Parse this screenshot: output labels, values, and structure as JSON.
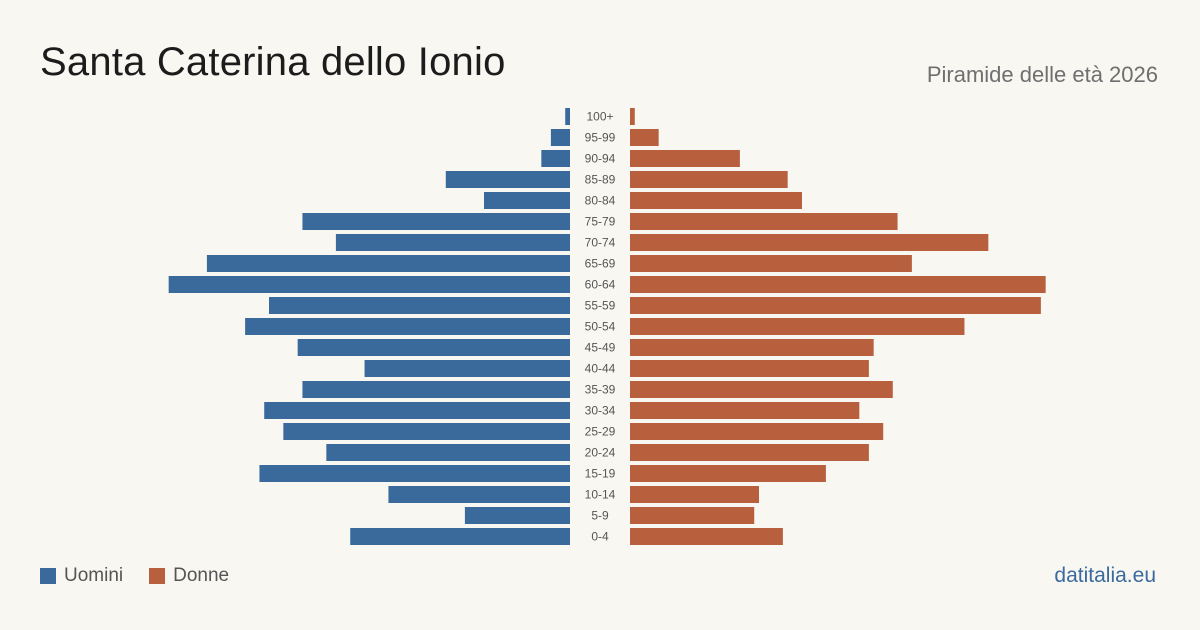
{
  "header": {
    "title": "Santa Caterina dello Ionio",
    "subtitle": "Piramide delle età 2026"
  },
  "legend": {
    "men_label": "Uomini",
    "women_label": "Donne"
  },
  "footer": {
    "site": "datitalia.eu"
  },
  "colors": {
    "men": "#3a6a9b",
    "women": "#b85f3e",
    "background": "#f9f7f2"
  },
  "chart_data": {
    "type": "bar",
    "orientation": "horizontal-pyramid",
    "title": "Santa Caterina dello Ionio",
    "subtitle": "Piramide delle età 2026",
    "categories": [
      "100+",
      "95-99",
      "90-94",
      "85-89",
      "80-84",
      "75-79",
      "70-74",
      "65-69",
      "60-64",
      "55-59",
      "50-54",
      "45-49",
      "40-44",
      "35-39",
      "30-34",
      "25-29",
      "20-24",
      "15-19",
      "10-14",
      "5-9",
      "0-4"
    ],
    "series": [
      {
        "name": "Uomini",
        "values": [
          1,
          4,
          6,
          26,
          18,
          56,
          49,
          76,
          84,
          63,
          68,
          57,
          43,
          56,
          64,
          60,
          51,
          65,
          38,
          22,
          46
        ]
      },
      {
        "name": "Donne",
        "values": [
          1,
          6,
          23,
          33,
          36,
          56,
          75,
          59,
          87,
          86,
          70,
          51,
          50,
          55,
          48,
          53,
          50,
          41,
          27,
          26,
          32
        ]
      }
    ],
    "xlim": [
      0,
      90
    ],
    "legend_position": "bottom-left",
    "grid": false
  }
}
